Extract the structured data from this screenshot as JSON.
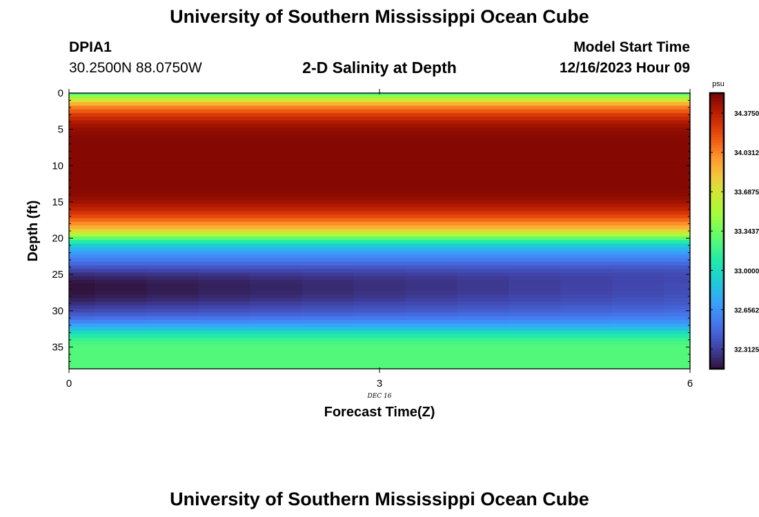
{
  "header": {
    "title": "University of Southern Mississippi Ocean Cube",
    "station_id": "DPIA1",
    "station_coords": "30.2500N  88.0750W",
    "subtitle": "2-D Salinity at Depth",
    "model_start_label": "Model Start Time",
    "model_start_value": "12/16/2023 Hour 09"
  },
  "footer": {
    "title": "University of Southern Mississippi Ocean Cube"
  },
  "chart_data": {
    "type": "heatmap",
    "title": "2-D Salinity at Depth",
    "xlabel": "Forecast Time(Z)",
    "ylabel": "Depth (ft)",
    "xlim": [
      0,
      6
    ],
    "ylim": [
      38,
      0
    ],
    "x_ticks": [
      0,
      3,
      6
    ],
    "y_ticks": [
      0,
      5,
      10,
      15,
      20,
      25,
      30,
      35
    ],
    "x_date_label": "DEC 16",
    "x_date_at": 3,
    "colorbar": {
      "unit": "psu",
      "range": [
        32.14,
        34.55
      ],
      "ticks": [
        "34.3750",
        "34.0312",
        "33.6875",
        "33.3437",
        "33.0000",
        "32.6562",
        "32.3125"
      ],
      "tick_values": [
        34.375,
        34.03125,
        33.6875,
        33.34375,
        33.0,
        32.65625,
        32.3125
      ]
    },
    "time_columns": [
      0,
      0.5,
      1.0,
      1.5,
      2.0,
      2.5,
      3.0,
      3.5,
      4.0,
      4.5,
      5.0,
      5.5,
      6.0
    ],
    "depths": [
      0,
      0.5,
      1,
      1.5,
      2,
      2.5,
      3,
      3.5,
      4,
      4.5,
      5,
      5.5,
      6,
      6.5,
      7,
      7.5,
      8,
      8.5,
      9,
      9.5,
      10,
      10.5,
      11,
      11.5,
      12,
      12.5,
      13,
      13.5,
      14,
      14.5,
      15,
      15.5,
      16,
      16.5,
      17,
      17.5,
      18,
      18.5,
      19,
      19.5,
      20,
      20.5,
      21,
      21.5,
      22,
      22.5,
      23,
      23.5,
      24,
      24.5,
      25,
      25.5,
      26,
      26.5,
      27,
      27.5,
      28,
      28.5,
      29,
      29.5,
      30,
      30.5,
      31,
      31.5,
      32,
      32.5,
      33,
      33.5,
      34,
      34.5,
      35,
      35.5,
      36,
      36.5,
      37,
      37.5,
      38
    ],
    "salinity_profile_start": [
      33.2,
      33.45,
      33.7,
      33.9,
      34.05,
      34.15,
      34.25,
      34.33,
      34.4,
      34.45,
      34.48,
      34.5,
      34.51,
      34.52,
      34.52,
      34.52,
      34.52,
      34.52,
      34.52,
      34.52,
      34.52,
      34.52,
      34.52,
      34.52,
      34.52,
      34.52,
      34.52,
      34.51,
      34.5,
      34.48,
      34.45,
      34.4,
      34.35,
      34.28,
      34.2,
      34.1,
      34.0,
      33.9,
      33.75,
      33.55,
      33.3,
      33.1,
      32.92,
      32.8,
      32.7,
      32.62,
      32.55,
      32.48,
      32.4,
      32.32,
      32.25,
      32.2,
      32.16,
      32.14,
      32.14,
      32.15,
      32.17,
      32.2,
      32.25,
      32.3,
      32.35,
      32.42,
      32.5,
      32.6,
      32.72,
      32.85,
      33.0,
      33.1,
      33.18,
      33.22,
      33.25,
      33.25,
      33.25,
      33.25,
      33.25,
      33.25,
      33.25
    ],
    "salinity_profile_end": [
      33.2,
      33.45,
      33.7,
      33.9,
      34.05,
      34.15,
      34.25,
      34.33,
      34.4,
      34.45,
      34.48,
      34.5,
      34.51,
      34.52,
      34.52,
      34.52,
      34.52,
      34.52,
      34.52,
      34.52,
      34.52,
      34.52,
      34.52,
      34.52,
      34.52,
      34.52,
      34.52,
      34.51,
      34.5,
      34.48,
      34.45,
      34.4,
      34.35,
      34.28,
      34.2,
      34.1,
      34.0,
      33.9,
      33.75,
      33.55,
      33.3,
      33.1,
      32.92,
      32.8,
      32.7,
      32.62,
      32.55,
      32.48,
      32.42,
      32.38,
      32.36,
      32.35,
      32.35,
      32.36,
      32.36,
      32.37,
      32.38,
      32.4,
      32.42,
      32.45,
      32.48,
      32.52,
      32.58,
      32.65,
      32.74,
      32.85,
      33.0,
      33.1,
      33.18,
      33.22,
      33.25,
      33.25,
      33.25,
      33.25,
      33.25,
      33.25,
      33.25
    ]
  }
}
